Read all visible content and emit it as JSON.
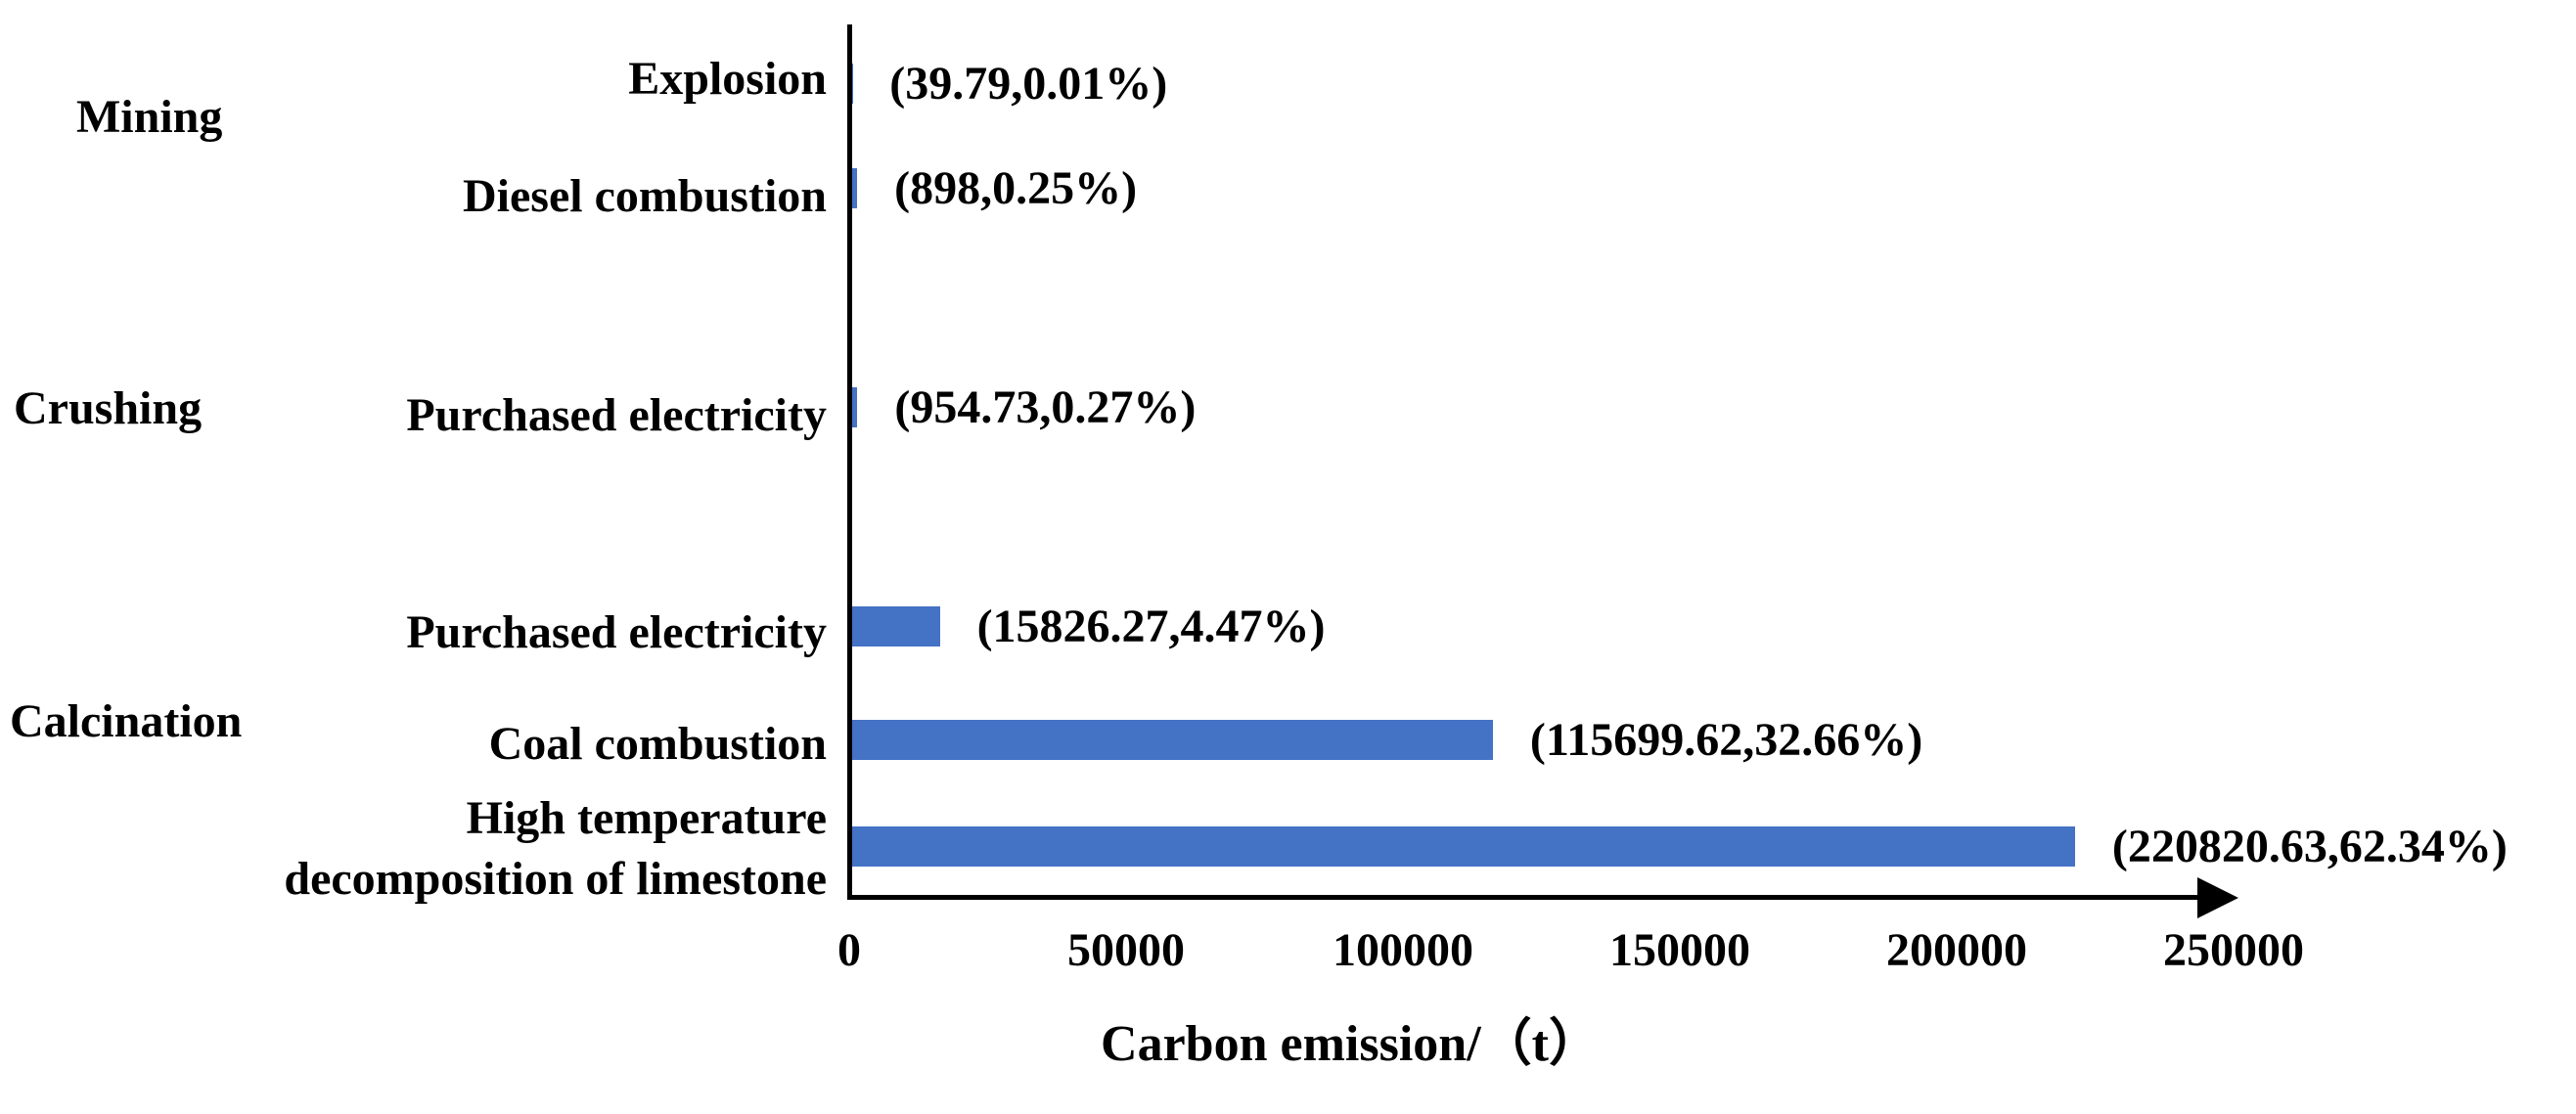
{
  "chart_data": {
    "type": "bar",
    "orientation": "horizontal",
    "xlabel": "Carbon emission/（t）",
    "xlim": [
      0,
      250000
    ],
    "x_ticks": [
      "0",
      "50000",
      "100000",
      "150000",
      "200000",
      "250000"
    ],
    "bar_color": "#4472C4",
    "axis_color": "#000000",
    "grid": false,
    "legend": "none",
    "groups": [
      {
        "label": "Mining"
      },
      {
        "label": "Crushing"
      },
      {
        "label": "Calcination"
      }
    ],
    "rows": [
      {
        "group": "Mining",
        "label": "Explosion",
        "value": 39.79,
        "percent": "0.01%",
        "annotation": "(39.79,0.01%)"
      },
      {
        "group": "Mining",
        "label": "Diesel combustion",
        "value": 898,
        "percent": "0.25%",
        "annotation": "(898,0.25%)"
      },
      {
        "group": "Crushing",
        "label": "Purchased electricity",
        "value": 954.73,
        "percent": "0.27%",
        "annotation": "(954.73,0.27%)"
      },
      {
        "group": "Calcination",
        "label": "Purchased electricity",
        "value": 15826.27,
        "percent": "4.47%",
        "annotation": "(15826.27,4.47%)"
      },
      {
        "group": "Calcination",
        "label": "Coal combustion",
        "value": 115699.62,
        "percent": "32.66%",
        "annotation": "(115699.62,32.66%)"
      },
      {
        "group": "Calcination",
        "label": "High temperature decomposition of limestone",
        "value": 220820.63,
        "percent": "62.34%",
        "annotation": "(220820.63,62.34%)"
      }
    ]
  }
}
